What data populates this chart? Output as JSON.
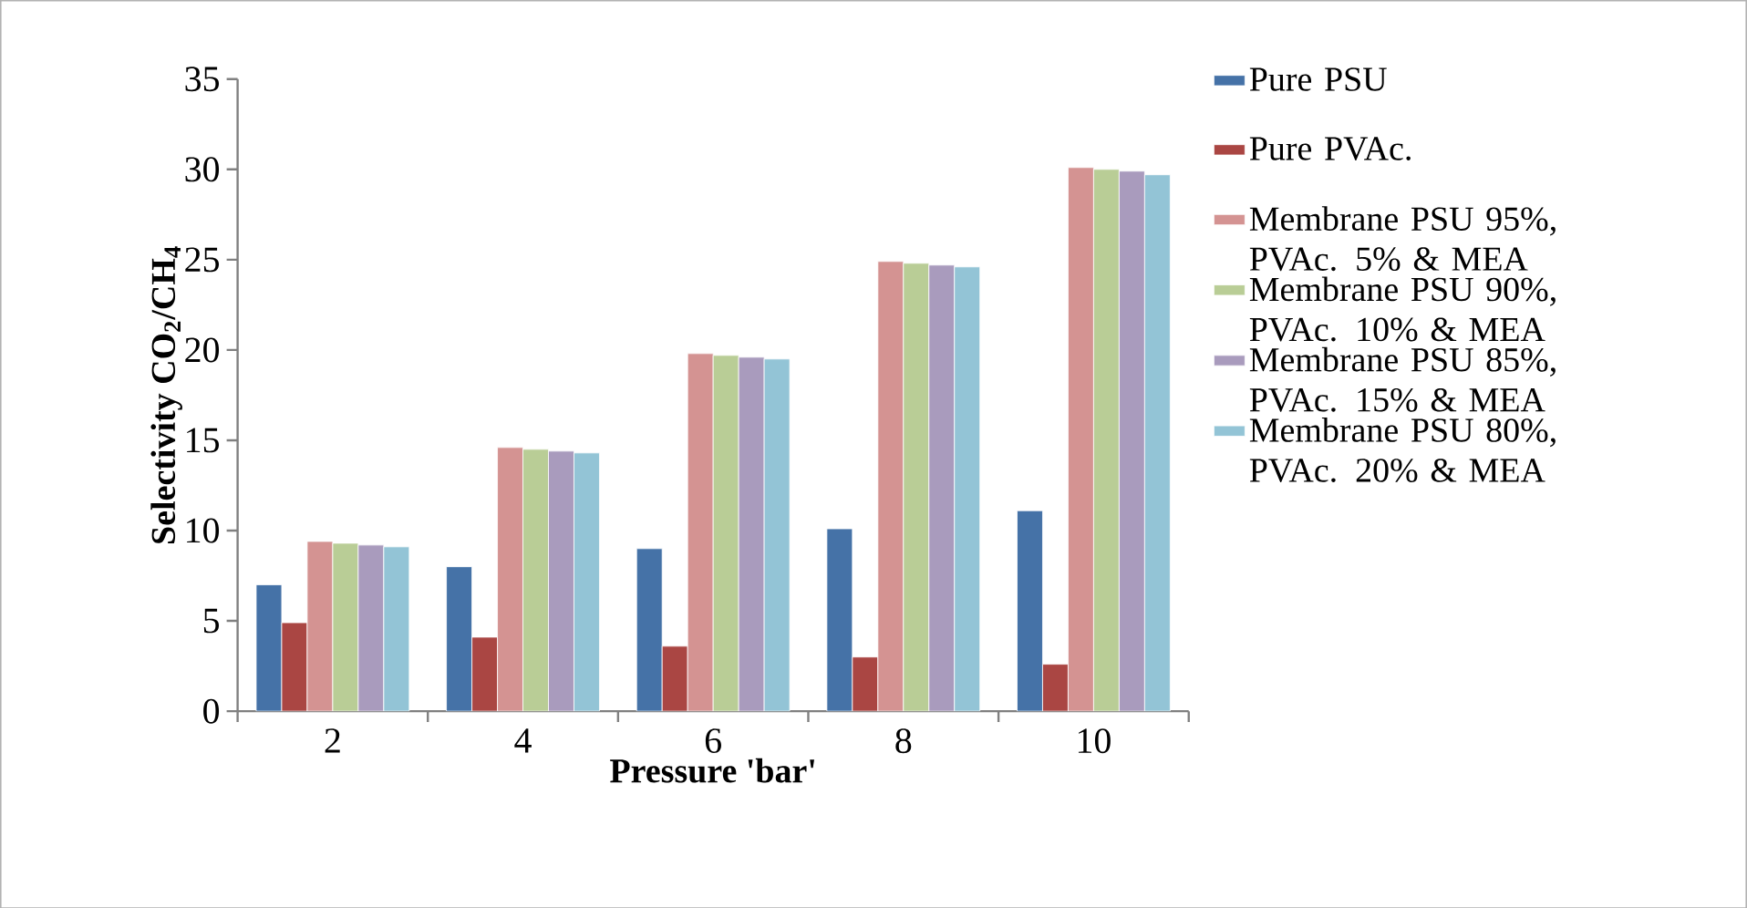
{
  "chart_data": {
    "type": "bar",
    "xlabel": "Pressure 'bar'",
    "ylabel": "**Selectivity CO$_{2}$/CH$_{4}$**",
    "categories": [
      "2",
      "4",
      "6",
      "8",
      "10"
    ],
    "series": [
      {
        "name": "Pure PSU",
        "color": "#4572a7",
        "values": [
          7.0,
          8.0,
          9.0,
          10.1,
          11.1
        ]
      },
      {
        "name": "Pure PVAc.",
        "color": "#aa4643",
        "values": [
          4.9,
          4.1,
          3.6,
          3.0,
          2.6
        ]
      },
      {
        "name": "Membrane PSU 95%, PVAc. 5% & MEA",
        "color": "#d49392",
        "values": [
          9.4,
          14.6,
          19.8,
          24.9,
          30.1
        ]
      },
      {
        "name": "Membrane PSU 90%, PVAc. 10% & MEA",
        "color": "#b9cd96",
        "values": [
          9.3,
          14.5,
          19.7,
          24.8,
          30.0
        ]
      },
      {
        "name": "Membrane PSU 85%, PVAc. 15% & MEA",
        "color": "#a99bbd",
        "values": [
          9.2,
          14.4,
          19.6,
          24.7,
          29.9
        ]
      },
      {
        "name": "Membrane PSU 80%, PVAc. 20% & MEA",
        "color": "#93c4d6",
        "values": [
          9.1,
          14.3,
          19.5,
          24.6,
          29.7
        ]
      }
    ],
    "ylim": [
      0,
      35
    ],
    "yticks": [
      0,
      5,
      10,
      15,
      20,
      25,
      30,
      35
    ],
    "grid": false,
    "legend": "right"
  }
}
